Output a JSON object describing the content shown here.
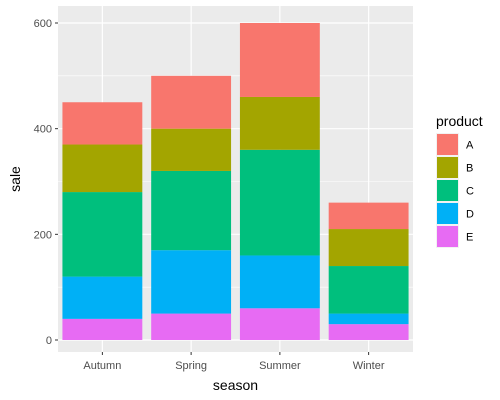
{
  "chart_data": {
    "type": "bar",
    "stacked": true,
    "categories": [
      "Autumn",
      "Spring",
      "Summer",
      "Winter"
    ],
    "series": [
      {
        "name": "A",
        "color": "#F8766D",
        "values": [
          80,
          100,
          140,
          50
        ]
      },
      {
        "name": "B",
        "color": "#A3A500",
        "values": [
          90,
          80,
          100,
          70
        ]
      },
      {
        "name": "C",
        "color": "#00BF7D",
        "values": [
          160,
          150,
          200,
          90
        ]
      },
      {
        "name": "D",
        "color": "#00B0F6",
        "values": [
          80,
          120,
          100,
          20
        ]
      },
      {
        "name": "E",
        "color": "#E76BF3",
        "values": [
          40,
          50,
          60,
          30
        ]
      }
    ],
    "stack_order_bottom_to_top": [
      "E",
      "D",
      "C",
      "B",
      "A"
    ],
    "xlabel": "season",
    "ylabel": "sale",
    "ylim": [
      0,
      620
    ],
    "yticks": [
      0,
      200,
      400,
      600
    ],
    "grid": true,
    "panel_background": "#EBEBEB",
    "legend": {
      "title": "product",
      "placement": "right"
    }
  }
}
